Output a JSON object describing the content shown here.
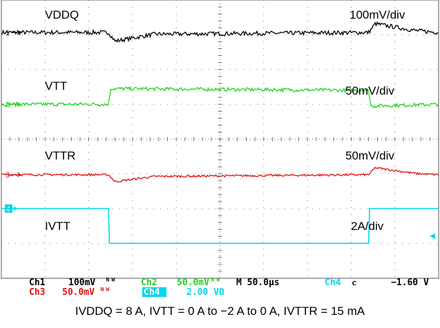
{
  "chart_data": {
    "type": "line",
    "title": "",
    "grid": true,
    "xlabel": "",
    "ylabel": "",
    "timebase": "M 50.0µs",
    "x_divisions": 10,
    "y_divisions": 8,
    "x_unit": "division",
    "x_range": [
      0,
      10
    ],
    "series": [
      {
        "name": "VDDQ",
        "channel": "1",
        "color": "#000000",
        "scale": "100mV/div",
        "baseline_div": 1,
        "step_on_div": 2.45,
        "step_off_div": 8.4,
        "dip": -0.2,
        "overshoot": 0.25,
        "ripple": 0.06,
        "x": [
          0,
          2.45,
          2.6,
          3.5,
          8.4,
          8.55,
          9.5,
          10
        ],
        "y": [
          0,
          0,
          -0.25,
          -0.05,
          0,
          0.25,
          0.05,
          0
        ]
      },
      {
        "name": "VTT",
        "channel": "2",
        "color": "#22d022",
        "scale": "50mV/div",
        "baseline_div": 3,
        "step_on_div": 2.45,
        "step_off_div": 8.4,
        "level": 0.45,
        "ripple": 0.05,
        "x": [
          0,
          2.45,
          2.5,
          8.4,
          8.45,
          10
        ],
        "y": [
          0,
          0,
          0.45,
          0.4,
          -0.05,
          0
        ]
      },
      {
        "name": "VTTR",
        "channel": "3",
        "color": "#dd1111",
        "scale": "50mV/div",
        "baseline_div": 5,
        "step_on_div": 2.45,
        "step_off_div": 8.4,
        "dip": -0.2,
        "overshoot": 0.2,
        "ripple": 0.03,
        "x": [
          0,
          2.45,
          2.6,
          3.5,
          8.4,
          8.55,
          9.5,
          10
        ],
        "y": [
          0,
          0,
          -0.2,
          -0.05,
          0,
          0.2,
          0.03,
          0
        ]
      },
      {
        "name": "IVTT",
        "channel": "4",
        "color": "#00d8ee",
        "scale": "2A/div",
        "unit": "A",
        "x": [
          0,
          2.45,
          2.47,
          8.4,
          8.42,
          10
        ],
        "y": [
          0,
          0,
          -2,
          -2,
          0,
          0
        ]
      }
    ],
    "trace_labels": [
      "VDDQ",
      "VTT",
      "VTTR",
      "IVTT"
    ],
    "scale_labels": [
      "100mV/div",
      "50mV/div",
      "50mV/div",
      "2A/div"
    ]
  },
  "status_bar": {
    "ch1_name": "Ch1",
    "ch1_value": "100mV",
    "ch2_name": "Ch2",
    "ch2_value": "50.0mV",
    "timebase": "M 50.0µs",
    "trig_src": "Ch4",
    "trig_slope": "ⲥ",
    "trig_level": "−1.60 V",
    "ch3_name": "Ch3",
    "ch3_value": "50.0mV",
    "ch4_name": "Ch4",
    "ch4_value": "2.00 VΩ",
    "bw_mark": "ᴺᵂ"
  },
  "colors": {
    "ch1": "#000000",
    "ch2": "#22d022",
    "ch3": "#dd1111",
    "ch4": "#00d8ee",
    "ch4_marker": "#00d8ee",
    "grid": "#555555"
  },
  "caption": "IVDDQ = 8 A, IVTT = 0 A to −2 A to 0 A, IVTTR = 15 mA"
}
